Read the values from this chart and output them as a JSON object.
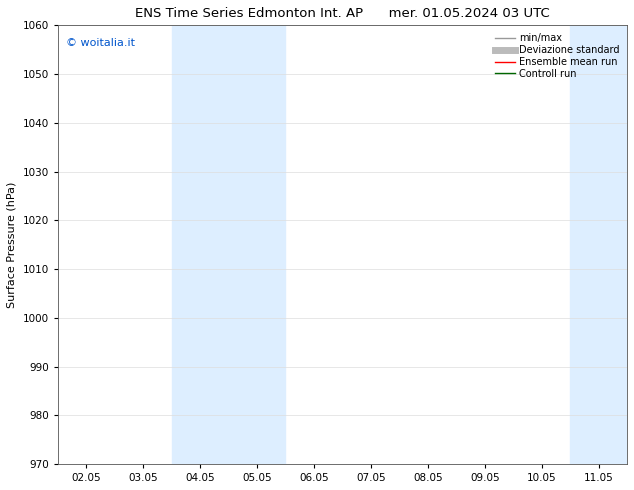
{
  "title_left": "ENS Time Series Edmonton Int. AP",
  "title_right": "mer. 01.05.2024 03 UTC",
  "ylabel": "Surface Pressure (hPa)",
  "ylim": [
    970,
    1060
  ],
  "yticks": [
    970,
    980,
    990,
    1000,
    1010,
    1020,
    1030,
    1040,
    1050,
    1060
  ],
  "xtick_labels": [
    "02.05",
    "03.05",
    "04.05",
    "05.05",
    "06.05",
    "07.05",
    "08.05",
    "09.05",
    "10.05",
    "11.05"
  ],
  "xtick_positions": [
    0,
    1,
    2,
    3,
    4,
    5,
    6,
    7,
    8,
    9
  ],
  "xlim": [
    -0.5,
    9.5
  ],
  "shaded_bands": [
    {
      "x_start": 1.5,
      "x_end": 3.5,
      "color": "#ddeeff"
    },
    {
      "x_start": 8.5,
      "x_end": 9.5,
      "color": "#ddeeff"
    }
  ],
  "watermark_text": "© woitalia.it",
  "watermark_color": "#0055cc",
  "legend_entries": [
    {
      "label": "min/max",
      "color": "#999999",
      "linestyle": "-",
      "linewidth": 1.0
    },
    {
      "label": "Deviazione standard",
      "color": "#bbbbbb",
      "linestyle": "-",
      "linewidth": 5
    },
    {
      "label": "Ensemble mean run",
      "color": "#ff0000",
      "linestyle": "-",
      "linewidth": 1.0
    },
    {
      "label": "Controll run",
      "color": "#006600",
      "linestyle": "-",
      "linewidth": 1.0
    }
  ],
  "background_color": "#ffffff",
  "grid_color": "#dddddd",
  "title_fontsize": 9.5,
  "tick_fontsize": 7.5,
  "ylabel_fontsize": 8,
  "watermark_fontsize": 8,
  "legend_fontsize": 7
}
